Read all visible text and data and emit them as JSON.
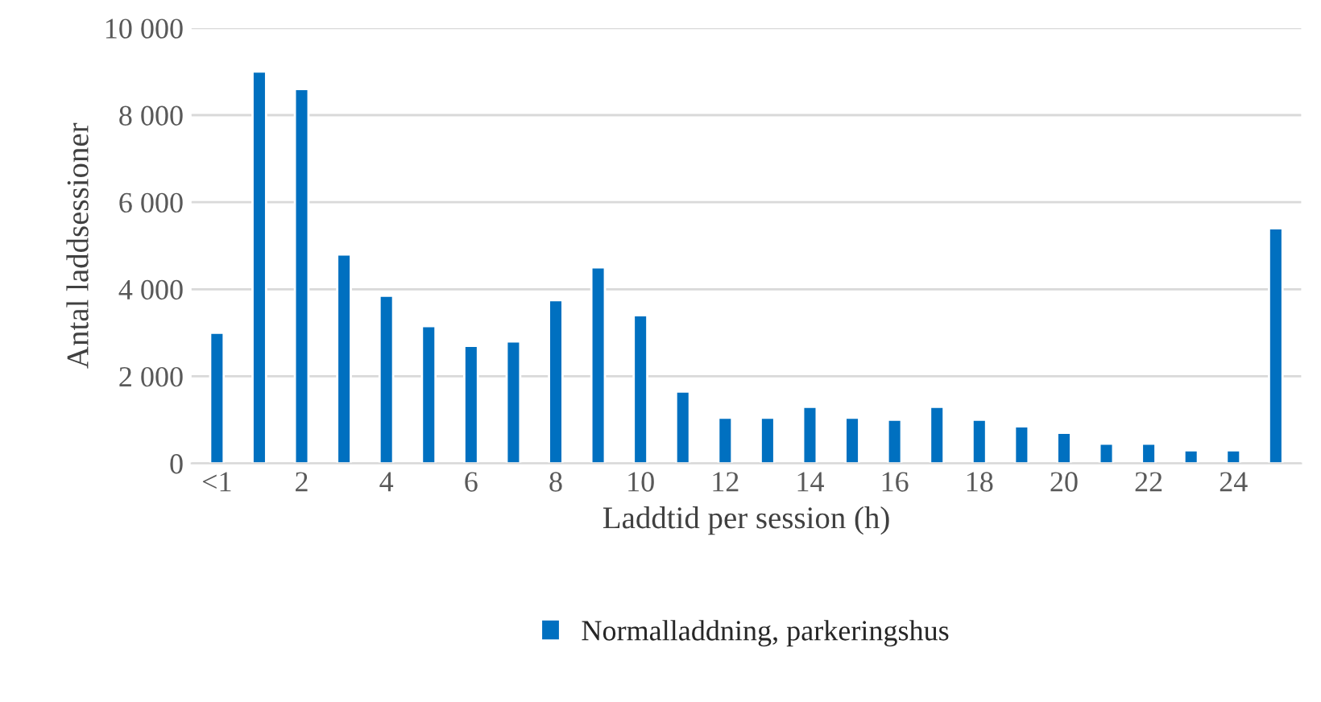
{
  "chart_data": {
    "type": "bar",
    "xlabel": "Laddtid per session (h)",
    "ylabel": "Antal laddsessioner",
    "categories": [
      "<1",
      null,
      "2",
      null,
      "4",
      null,
      "6",
      null,
      "8",
      null,
      "10",
      null,
      "12",
      null,
      "14",
      null,
      "16",
      null,
      "18",
      null,
      "20",
      null,
      "22",
      null,
      "24",
      null
    ],
    "series": [
      {
        "name": "Normalladdning, parkeringshus",
        "color": "#0070c0",
        "values": [
          3000,
          9000,
          8600,
          4800,
          3850,
          3150,
          2700,
          2800,
          3750,
          4500,
          3400,
          1650,
          1050,
          1050,
          1300,
          1050,
          1000,
          1300,
          1000,
          850,
          700,
          450,
          450,
          300,
          300,
          5400
        ]
      }
    ],
    "ylim": [
      0,
      10000
    ],
    "yticks": [
      {
        "value": 0,
        "label": "0"
      },
      {
        "value": 2000,
        "label": "2 000"
      },
      {
        "value": 4000,
        "label": "4 000"
      },
      {
        "value": 6000,
        "label": "6 000"
      },
      {
        "value": 8000,
        "label": "8 000"
      },
      {
        "value": 10000,
        "label": "10 000"
      }
    ],
    "grid": "y",
    "legend": "bottom"
  }
}
